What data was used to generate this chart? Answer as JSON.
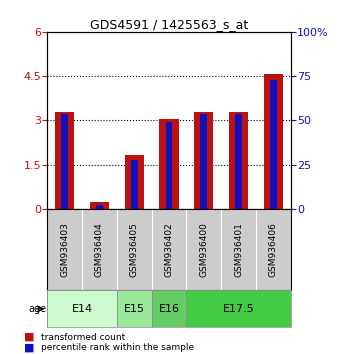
{
  "title": "GDS4591 / 1425563_s_at",
  "samples": [
    "GSM936403",
    "GSM936404",
    "GSM936405",
    "GSM936402",
    "GSM936400",
    "GSM936401",
    "GSM936406"
  ],
  "transformed_counts": [
    3.3,
    0.22,
    1.83,
    3.05,
    3.3,
    3.28,
    4.57
  ],
  "percentile_ranks_scaled": [
    3.2,
    0.12,
    1.65,
    2.95,
    3.22,
    3.22,
    4.38
  ],
  "red_color": "#bb1111",
  "blue_color": "#1111bb",
  "ylim_left": [
    0,
    6
  ],
  "ylim_right": [
    0,
    100
  ],
  "yticks_left": [
    0,
    1.5,
    3.0,
    4.5,
    6
  ],
  "ytick_labels_left": [
    "0",
    "1.5",
    "3",
    "4.5",
    "6"
  ],
  "yticks_right": [
    0,
    25,
    50,
    75,
    100
  ],
  "ytick_labels_right": [
    "0",
    "25",
    "50",
    "75",
    "100%"
  ],
  "dotted_lines": [
    1.5,
    3.0,
    4.5
  ],
  "bg_color": "#cccccc",
  "plot_bg": "#ffffff",
  "figsize": [
    3.38,
    3.54
  ],
  "dpi": 100,
  "legend_red": "transformed count",
  "legend_blue": "percentile rank within the sample",
  "group_samples": [
    [
      "GSM936403",
      "GSM936404"
    ],
    [
      "GSM936405"
    ],
    [
      "GSM936402"
    ],
    [
      "GSM936400",
      "GSM936401",
      "GSM936406"
    ]
  ],
  "group_labels": [
    "E14",
    "E15",
    "E16",
    "E17.5"
  ],
  "group_colors": [
    "#cdfacd",
    "#99e899",
    "#66cc66",
    "#44cc44"
  ],
  "age_label": "age"
}
